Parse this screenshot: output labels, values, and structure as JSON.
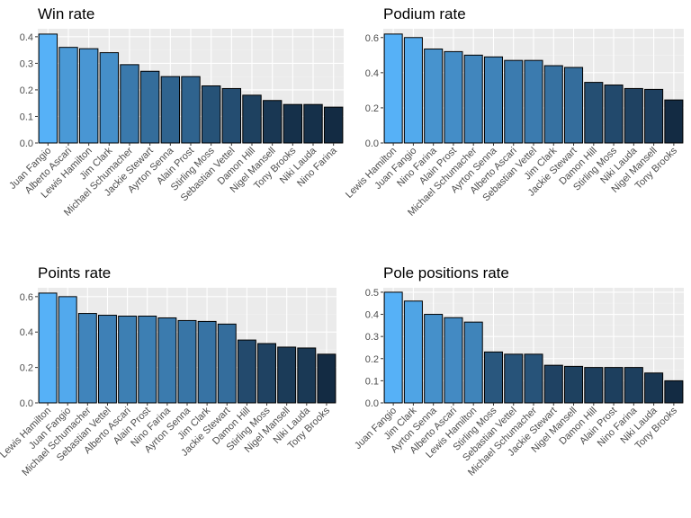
{
  "chart_data": [
    {
      "type": "bar",
      "title": "Win rate",
      "xlabel": "",
      "ylabel": "",
      "categories": [
        "Juan Fangio",
        "Alberto Ascari",
        "Lewis Hamilton",
        "Jim Clark",
        "Michael Schumacher",
        "Jackie Stewart",
        "Ayrton Senna",
        "Alain Prost",
        "Stirling Moss",
        "Sebastian Vettel",
        "Damon Hill",
        "Nigel Mansell",
        "Tony Brooks",
        "Niki Lauda",
        "Nino Farina"
      ],
      "values": [
        0.41,
        0.36,
        0.355,
        0.34,
        0.295,
        0.27,
        0.25,
        0.25,
        0.215,
        0.205,
        0.18,
        0.16,
        0.145,
        0.145,
        0.135
      ],
      "yticks": [
        0.0,
        0.1,
        0.2,
        0.3,
        0.4
      ],
      "ytick_labels": [
        "0.0",
        "0.1",
        "0.2",
        "0.3",
        "0.4"
      ],
      "ylim": [
        0,
        0.43
      ],
      "grid": true
    },
    {
      "type": "bar",
      "title": "Podium rate",
      "xlabel": "",
      "ylabel": "",
      "categories": [
        "Lewis Hamilton",
        "Juan Fangio",
        "Nino Farina",
        "Alain Prost",
        "Michael Schumacher",
        "Ayrton Senna",
        "Alberto Ascari",
        "Sebastian Vettel",
        "Jim Clark",
        "Jackie Stewart",
        "Damon Hill",
        "Stirling Moss",
        "Niki Lauda",
        "Nigel Mansell",
        "Tony Brooks"
      ],
      "values": [
        0.62,
        0.6,
        0.535,
        0.52,
        0.5,
        0.49,
        0.47,
        0.47,
        0.44,
        0.43,
        0.345,
        0.33,
        0.31,
        0.305,
        0.245
      ],
      "yticks": [
        0.0,
        0.2,
        0.4,
        0.6
      ],
      "ytick_labels": [
        "0.0",
        "0.2",
        "0.4",
        "0.6"
      ],
      "ylim": [
        0,
        0.65
      ],
      "grid": true
    },
    {
      "type": "bar",
      "title": "Points rate",
      "xlabel": "",
      "ylabel": "",
      "categories": [
        "Lewis Hamilton",
        "Juan Fangio",
        "Michael Schumacher",
        "Sebastian Vettel",
        "Alberto Ascari",
        "Alain Prost",
        "Nino Farina",
        "Ayrton Senna",
        "Jim Clark",
        "Jackie Stewart",
        "Damon Hill",
        "Stirling Moss",
        "Nigel Mansell",
        "Niki Lauda",
        "Tony Brooks"
      ],
      "values": [
        0.62,
        0.6,
        0.505,
        0.495,
        0.49,
        0.49,
        0.48,
        0.465,
        0.46,
        0.445,
        0.355,
        0.335,
        0.315,
        0.31,
        0.275
      ],
      "yticks": [
        0.0,
        0.2,
        0.4,
        0.6
      ],
      "ytick_labels": [
        "0.0",
        "0.2",
        "0.4",
        "0.6"
      ],
      "ylim": [
        0,
        0.65
      ],
      "grid": true
    },
    {
      "type": "bar",
      "title": "Pole positions rate",
      "xlabel": "",
      "ylabel": "",
      "categories": [
        "Juan Fangio",
        "Jim Clark",
        "Ayrton Senna",
        "Alberto Ascari",
        "Lewis Hamilton",
        "Stirling Moss",
        "Sebastian Vettel",
        "Michael Schumacher",
        "Jackie Stewart",
        "Nigel Mansell",
        "Damon Hill",
        "Alain Prost",
        "Nino Farina",
        "Niki Lauda",
        "Tony Brooks"
      ],
      "values": [
        0.5,
        0.46,
        0.4,
        0.385,
        0.365,
        0.23,
        0.22,
        0.22,
        0.17,
        0.165,
        0.16,
        0.16,
        0.16,
        0.135,
        0.1
      ],
      "yticks": [
        0.0,
        0.1,
        0.2,
        0.3,
        0.4,
        0.5
      ],
      "ytick_labels": [
        "0.0",
        "0.1",
        "0.2",
        "0.3",
        "0.4",
        "0.5"
      ],
      "ylim": [
        0,
        0.52
      ],
      "grid": true
    }
  ],
  "colors": {
    "panel_background": "#ebebeb",
    "grid_major": "#ffffff",
    "grid_minor": "#f2f2f2",
    "bar_outline": "#000000",
    "gradient_low": "#132b43",
    "gradient_high": "#56b1f7"
  }
}
